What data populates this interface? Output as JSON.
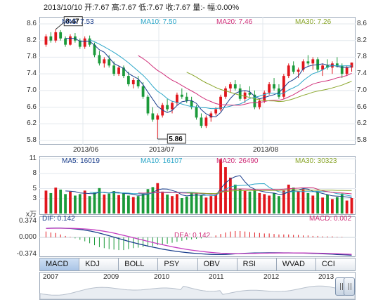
{
  "header": {
    "text": "2013/10/10 开:7.67  高:7.67  低:7.67  收:7.67  量:-  幅:0.00%"
  },
  "price_panel": {
    "ma": [
      {
        "label": "MA5: 7.53",
        "color": "#1a3e8c"
      },
      {
        "label": "MA10: 7.50",
        "color": "#2aa6c8"
      },
      {
        "label": "MA20: 7.46",
        "color": "#d0307a"
      },
      {
        "label": "MA30: 7.26",
        "color": "#8aa62a"
      }
    ],
    "y_ticks": [
      "8.6",
      "8.2",
      "7.8",
      "7.4",
      "7.0",
      "6.6",
      "6.2",
      "5.8"
    ],
    "x_labels": [
      "2013/06",
      "2013/07",
      "2013/08"
    ],
    "high_marker": "8.47",
    "low_marker": "5.86"
  },
  "volume_panel": {
    "ma": [
      {
        "label": "MA5: 16019",
        "color": "#1a3e8c"
      },
      {
        "label": "MA10: 16107",
        "color": "#2aa6c8"
      },
      {
        "label": "MA20: 26490",
        "color": "#d0307a"
      },
      {
        "label": "MA30: 30323",
        "color": "#8aa62a"
      }
    ],
    "y_ticks": [
      "11",
      "8",
      "5",
      "3"
    ],
    "unit": "x万"
  },
  "macd_panel": {
    "dif_label": "DIF: 0.142",
    "dea_label": "DEA: 0.142",
    "macd_label": "MACD: 0.002",
    "y_ticks": [
      "0.374",
      "0.000",
      "-0.374"
    ]
  },
  "tabs": [
    "MACD",
    "KDJ",
    "BOLL",
    "PSY",
    "OBV",
    "RSI",
    "WVAD",
    "CCI"
  ],
  "navigator": {
    "years": [
      "2007",
      "2009",
      "2010",
      "2011",
      "2012",
      "2013"
    ]
  },
  "chart_data": {
    "type": "candlestick",
    "title": "",
    "dates_first": "2013/05/20",
    "x_labels": [
      "2013/06",
      "2013/07",
      "2013/08"
    ],
    "ylim": [
      5.8,
      8.6
    ],
    "ohlc": [
      [
        8.1,
        8.35,
        8.05,
        8.3
      ],
      [
        8.3,
        8.4,
        8.15,
        8.2
      ],
      [
        8.2,
        8.47,
        8.15,
        8.4
      ],
      [
        8.4,
        8.45,
        8.2,
        8.25
      ],
      [
        8.25,
        8.3,
        8.05,
        8.1
      ],
      [
        8.1,
        8.35,
        8.08,
        8.3
      ],
      [
        8.3,
        8.38,
        8.15,
        8.2
      ],
      [
        8.2,
        8.25,
        8.0,
        8.05
      ],
      [
        8.05,
        8.3,
        8.0,
        8.25
      ],
      [
        8.25,
        8.32,
        8.05,
        8.1
      ],
      [
        8.1,
        8.15,
        7.8,
        7.85
      ],
      [
        7.85,
        7.95,
        7.6,
        7.65
      ],
      [
        7.65,
        7.8,
        7.55,
        7.75
      ],
      [
        7.75,
        7.85,
        7.55,
        7.6
      ],
      [
        7.6,
        7.7,
        7.35,
        7.4
      ],
      [
        7.4,
        7.6,
        7.35,
        7.55
      ],
      [
        7.55,
        7.6,
        7.3,
        7.35
      ],
      [
        7.35,
        7.45,
        7.1,
        7.15
      ],
      [
        7.15,
        7.3,
        7.05,
        7.25
      ],
      [
        7.25,
        7.35,
        7.05,
        7.1
      ],
      [
        7.1,
        7.2,
        6.8,
        6.85
      ],
      [
        6.85,
        6.9,
        6.4,
        6.45
      ],
      [
        6.45,
        6.6,
        6.25,
        6.3
      ],
      [
        6.3,
        6.45,
        5.86,
        6.4
      ],
      [
        6.4,
        6.7,
        6.35,
        6.65
      ],
      [
        6.65,
        6.8,
        6.5,
        6.55
      ],
      [
        6.55,
        6.75,
        6.45,
        6.7
      ],
      [
        6.7,
        6.95,
        6.65,
        6.9
      ],
      [
        6.9,
        7.05,
        6.8,
        6.85
      ],
      [
        6.85,
        6.95,
        6.7,
        6.75
      ],
      [
        6.75,
        6.85,
        6.55,
        6.6
      ],
      [
        6.6,
        6.65,
        6.3,
        6.35
      ],
      [
        6.35,
        6.45,
        6.1,
        6.15
      ],
      [
        6.15,
        6.4,
        6.1,
        6.35
      ],
      [
        6.35,
        6.5,
        6.25,
        6.45
      ],
      [
        6.45,
        6.6,
        6.4,
        6.55
      ],
      [
        6.55,
        6.9,
        6.5,
        6.85
      ],
      [
        6.85,
        7.1,
        6.8,
        7.05
      ],
      [
        7.05,
        7.2,
        6.95,
        7.15
      ],
      [
        7.15,
        7.25,
        7.0,
        7.05
      ],
      [
        7.05,
        7.15,
        6.75,
        6.8
      ],
      [
        6.8,
        7.0,
        6.7,
        6.95
      ],
      [
        6.95,
        7.1,
        6.85,
        6.9
      ],
      [
        6.9,
        7.0,
        6.55,
        6.6
      ],
      [
        6.6,
        6.8,
        6.55,
        6.75
      ],
      [
        6.75,
        7.0,
        6.7,
        6.95
      ],
      [
        6.95,
        7.2,
        6.9,
        7.15
      ],
      [
        7.15,
        7.3,
        7.0,
        7.05
      ],
      [
        7.05,
        7.15,
        6.8,
        6.85
      ],
      [
        6.85,
        7.4,
        6.8,
        7.35
      ],
      [
        7.35,
        7.65,
        7.3,
        7.6
      ],
      [
        7.6,
        7.7,
        7.4,
        7.45
      ],
      [
        7.45,
        7.55,
        7.3,
        7.5
      ],
      [
        7.5,
        7.75,
        7.45,
        7.7
      ],
      [
        7.7,
        7.85,
        7.6,
        7.65
      ],
      [
        7.65,
        7.8,
        7.5,
        7.75
      ],
      [
        7.75,
        7.8,
        7.45,
        7.5
      ],
      [
        7.5,
        7.65,
        7.35,
        7.6
      ],
      [
        7.6,
        7.75,
        7.5,
        7.55
      ],
      [
        7.55,
        7.7,
        7.4,
        7.65
      ],
      [
        7.65,
        7.8,
        7.55,
        7.6
      ],
      [
        7.6,
        7.65,
        7.3,
        7.4
      ],
      [
        7.4,
        7.6,
        7.35,
        7.55
      ],
      [
        7.55,
        7.67,
        7.45,
        7.67
      ]
    ],
    "volume_wan": [
      4.6,
      4.1,
      5.2,
      4.8,
      3.9,
      4.4,
      3.6,
      3.9,
      4.6,
      3.5,
      4.2,
      5.1,
      3.8,
      4.0,
      4.5,
      3.7,
      4.1,
      3.6,
      3.3,
      3.5,
      4.0,
      4.9,
      5.3,
      6.1,
      4.4,
      3.8,
      3.5,
      3.9,
      3.1,
      3.4,
      4.2,
      4.0,
      3.6,
      3.2,
      3.5,
      3.8,
      10.9,
      9.3,
      7.2,
      5.8,
      4.9,
      4.6,
      4.4,
      4.8,
      4.1,
      3.9,
      3.6,
      4.1,
      3.5,
      4.6,
      5.8,
      5.2,
      4.5,
      4.9,
      4.1,
      3.6,
      4.3,
      3.2,
      3.8,
      2.9,
      3.3,
      4.0,
      2.6,
      3.1
    ],
    "volume_ylim": [
      0,
      11
    ],
    "macd_hist": [
      0.12,
      0.1,
      0.09,
      0.06,
      0.03,
      0.01,
      -0.02,
      -0.05,
      -0.08,
      -0.12,
      -0.16,
      -0.2,
      -0.22,
      -0.24,
      -0.25,
      -0.26,
      -0.26,
      -0.24,
      -0.22,
      -0.21,
      -0.2,
      -0.19,
      -0.18,
      -0.16,
      -0.15,
      -0.13,
      -0.11,
      -0.09,
      -0.07,
      -0.05,
      -0.04,
      -0.03,
      -0.02,
      -0.01,
      0.01,
      0.04,
      0.07,
      0.1,
      0.12,
      0.13,
      0.13,
      0.12,
      0.11,
      0.1,
      0.09,
      0.08,
      0.08,
      0.07,
      0.06,
      0.06,
      0.06,
      0.05,
      0.05,
      0.04,
      0.04,
      0.03,
      0.03,
      0.02,
      0.02,
      0.02,
      0.01,
      0.01,
      0.0,
      0.0
    ],
    "macd_ylim": [
      -0.374,
      0.374
    ]
  }
}
